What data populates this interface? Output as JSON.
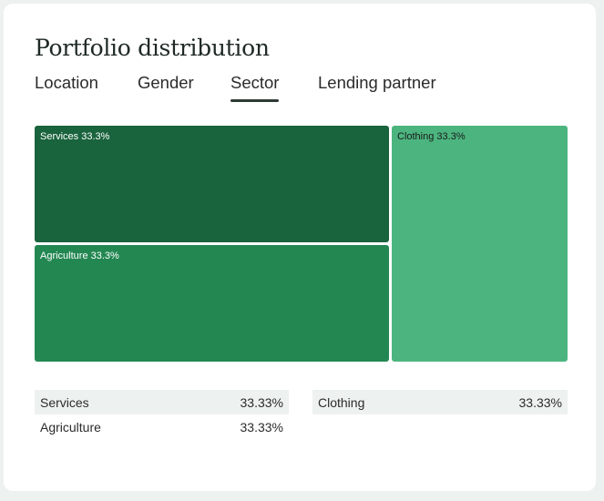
{
  "card": {
    "title": "Portfolio distribution",
    "tabs": [
      {
        "label": "Location",
        "active": false
      },
      {
        "label": "Gender",
        "active": false
      },
      {
        "label": "Sector",
        "active": true
      },
      {
        "label": "Lending partner",
        "active": false
      }
    ]
  },
  "treemap": {
    "tiles": [
      {
        "label": "Services 33.3%",
        "color": "#19633d"
      },
      {
        "label": "Agriculture 33.3%",
        "color": "#238752"
      },
      {
        "label": "Clothing 33.3%",
        "color": "#4cb57f"
      }
    ]
  },
  "legend": {
    "left": [
      {
        "name": "Services",
        "value": "33.33%"
      },
      {
        "name": "Agriculture",
        "value": "33.33%"
      }
    ],
    "right": [
      {
        "name": "Clothing",
        "value": "33.33%"
      }
    ]
  }
}
